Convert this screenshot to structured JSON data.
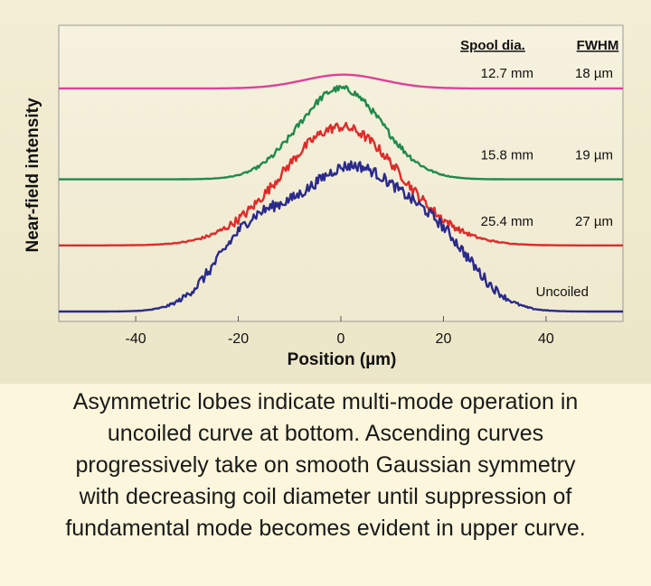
{
  "chart_data": {
    "type": "line",
    "xlabel": "Position (µm)",
    "ylabel": "Near-field intensity",
    "xlim": [
      -55,
      55
    ],
    "x_ticks": [
      -40,
      -20,
      0,
      20,
      40
    ],
    "y_ticks_shown": false,
    "grid": false,
    "legend": {
      "placement": "top-right",
      "header_spool": "Spool dia.",
      "header_fwhm": "FWHM"
    },
    "series": [
      {
        "name": "12.7 mm",
        "spool_label": "12.7 mm",
        "fwhm_label": "18 µm",
        "color": "#e0409a",
        "offset": 0.81,
        "amp": 0.05,
        "sigma": 7.7,
        "noise": 0.0,
        "peak_x": 0.5,
        "fwhm": 18
      },
      {
        "name": "15.8 mm",
        "spool_label": "15.8 mm",
        "fwhm_label": "19 µm",
        "color": "#1f8a4c",
        "offset": 0.48,
        "amp": 0.33,
        "sigma": 8.1,
        "noise": 0.012,
        "peak_x": 0,
        "fwhm": 19
      },
      {
        "name": "25.4 mm",
        "spool_label": "25.4 mm",
        "fwhm_label": "27 µm",
        "color": "#e02a2a",
        "offset": 0.24,
        "amp": 0.43,
        "sigma": 11.5,
        "noise": 0.018,
        "peak_x": 0,
        "fwhm": 27
      },
      {
        "name": "Uncoiled",
        "spool_label": "Uncoiled",
        "fwhm_label": "",
        "color": "#2a2a8c",
        "offset": 0.0,
        "amp": 0.52,
        "sigma": 11,
        "noise": 0.02,
        "lobes": [
          {
            "x": -18,
            "amp": 0.23,
            "sigma": 7
          },
          {
            "x": 20,
            "amp": 0.17,
            "sigma": 7
          }
        ],
        "peak_x": 2
      }
    ]
  },
  "caption": {
    "lines": [
      "Asymmetric lobes indicate multi-mode operation in",
      "uncoiled curve at bottom. Ascending curves",
      "progressively take on smooth Gaussian symmetry",
      "with decreasing coil diameter until suppression of",
      "fundamental mode becomes evident in upper curve."
    ]
  }
}
